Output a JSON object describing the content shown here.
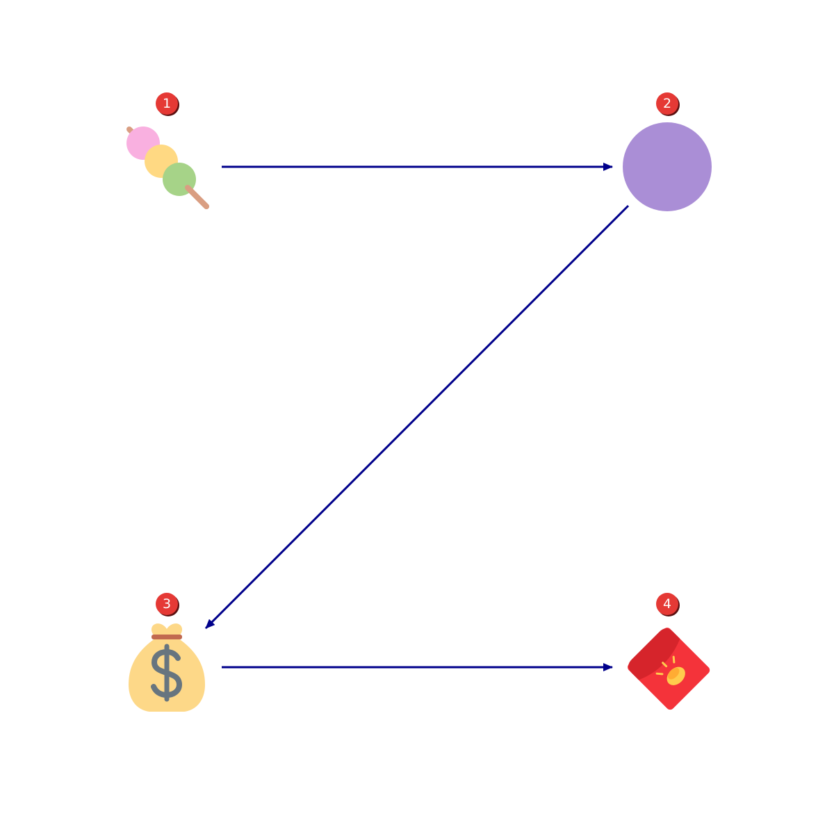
{
  "colors": {
    "arrow": "#00008b",
    "badge": "#e53935",
    "badge_shadow": "#5a1010",
    "badge_text": "#ffffff"
  },
  "nodes": [
    {
      "id": "1",
      "badge": "1",
      "icon": "dango-icon"
    },
    {
      "id": "2",
      "badge": "2",
      "icon": "purple-circle-icon"
    },
    {
      "id": "3",
      "badge": "3",
      "icon": "money-bag-icon"
    },
    {
      "id": "4",
      "badge": "4",
      "icon": "red-envelope-icon"
    }
  ],
  "edges": [
    {
      "from": "1",
      "to": "2"
    },
    {
      "from": "2",
      "to": "3"
    },
    {
      "from": "3",
      "to": "4"
    }
  ]
}
